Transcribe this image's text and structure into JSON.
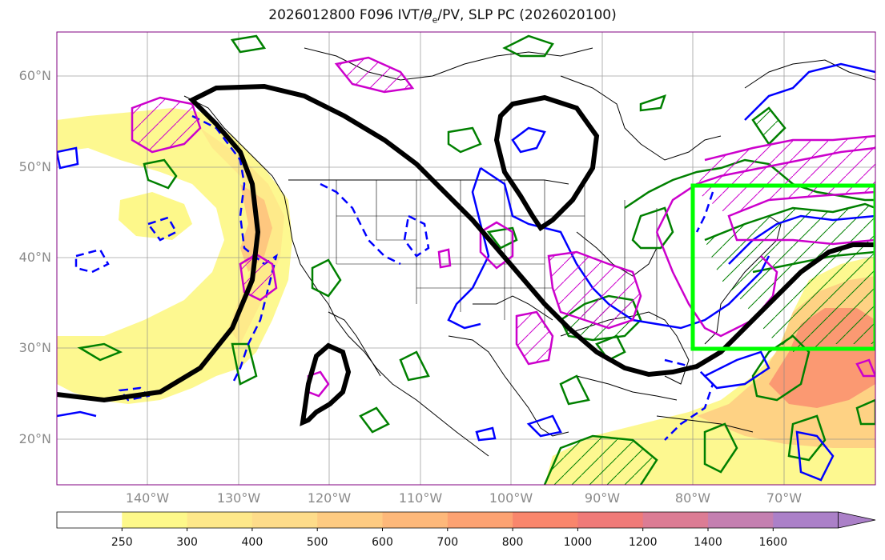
{
  "title": "2026012800 F096 IVT/θe/PV, SLP PC (2026020100)",
  "title_parts": {
    "pre": "2026012800 F096 IVT/",
    "theta": "θ",
    "sub": "e",
    "post": "/PV, SLP PC (2026020100)"
  },
  "map": {
    "projection": "PlateCarree",
    "extent": {
      "lon_min": -150,
      "lon_max": -60,
      "lat_min": 15,
      "lat_max": 65
    },
    "lat_ticks": [
      {
        "value": 20,
        "label": "20°N"
      },
      {
        "value": 30,
        "label": "30°N"
      },
      {
        "value": 40,
        "label": "40°N"
      },
      {
        "value": 50,
        "label": "50°N"
      },
      {
        "value": 60,
        "label": "60°N"
      }
    ],
    "lon_ticks": [
      {
        "value": -140,
        "label": "140°W"
      },
      {
        "value": -130,
        "label": "130°W"
      },
      {
        "value": -120,
        "label": "120°W"
      },
      {
        "value": -110,
        "label": "110°W"
      },
      {
        "value": -100,
        "label": "100°W"
      },
      {
        "value": -90,
        "label": "90°W"
      },
      {
        "value": -80,
        "label": "80°W"
      },
      {
        "value": -70,
        "label": "70°W"
      }
    ],
    "highlight_box": {
      "lon_min": -80,
      "lon_max": -60,
      "lat_min": 30,
      "lat_max": 48,
      "color": "#00ff00"
    },
    "colors": {
      "slp": "#000000",
      "pv": "#0000ff",
      "theta_e": "#008000",
      "highlight": "#cc00cc",
      "coast": "#000000",
      "grid": "#888888"
    }
  },
  "colorbar": {
    "levels": [
      "250",
      "300",
      "400",
      "500",
      "600",
      "700",
      "800",
      "1000",
      "1200",
      "1400",
      "1600"
    ],
    "colors": [
      "#ffffff",
      "#fdf88a",
      "#fee88a",
      "#fedc8a",
      "#fecb82",
      "#fdb87a",
      "#fca272",
      "#f9866c",
      "#ef7a78",
      "#dc7c94",
      "#c47fb0",
      "#ab80c8"
    ],
    "extend": "max"
  }
}
